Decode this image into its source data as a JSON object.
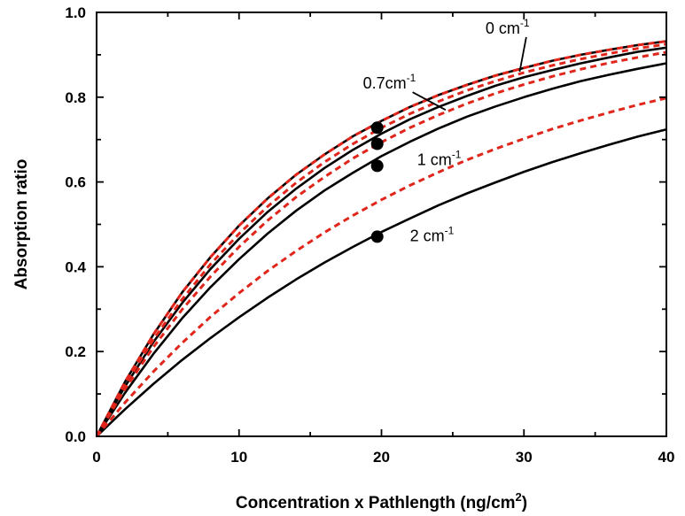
{
  "chart_data": {
    "type": "line",
    "xlabel": "Concentration x Pathlength (ng/cm",
    "xlabel_sup": "2",
    "xlabel_end": ")",
    "ylabel": "Absorption ratio",
    "xlim": [
      0,
      40
    ],
    "ylim": [
      0,
      1.0
    ],
    "xticks": [
      0,
      10,
      20,
      30,
      40
    ],
    "xtick_labels": [
      "0",
      "10",
      "20",
      "30",
      "40"
    ],
    "yticks": [
      0,
      0.2,
      0.4,
      0.6,
      0.8,
      1.0
    ],
    "ytick_labels": [
      "0.0",
      "0.2",
      "0.4",
      "0.6",
      "0.8",
      "1.0"
    ],
    "grid": false,
    "legend": "none",
    "colors": {
      "solid": "#000000",
      "dashed": "#e0251b"
    },
    "x": [
      0,
      2,
      4,
      6,
      8,
      10,
      12,
      14,
      16,
      18,
      20,
      22,
      24,
      26,
      28,
      30,
      32,
      34,
      36,
      38,
      40
    ],
    "series": [
      {
        "style": "solid",
        "label": "0 cm",
        "label_sup": "-1",
        "values": [
          0,
          0.129,
          0.241,
          0.339,
          0.423,
          0.497,
          0.561,
          0.617,
          0.665,
          0.708,
          0.744,
          0.777,
          0.805,
          0.829,
          0.851,
          0.869,
          0.886,
          0.9,
          0.912,
          0.923,
          0.932
        ]
      },
      {
        "style": "solid",
        "label": "0.7cm",
        "label_sup": "-1",
        "values": [
          0,
          0.118,
          0.223,
          0.314,
          0.395,
          0.466,
          0.529,
          0.584,
          0.633,
          0.676,
          0.714,
          0.748,
          0.777,
          0.803,
          0.827,
          0.847,
          0.864,
          0.88,
          0.894,
          0.907,
          0.917
        ]
      },
      {
        "style": "solid",
        "label": "1 cm",
        "label_sup": "-1",
        "values": [
          0,
          0.103,
          0.195,
          0.278,
          0.352,
          0.418,
          0.478,
          0.532,
          0.58,
          0.622,
          0.661,
          0.695,
          0.726,
          0.754,
          0.778,
          0.8,
          0.82,
          0.838,
          0.853,
          0.867,
          0.88
        ]
      },
      {
        "style": "solid",
        "label": "2 cm",
        "label_sup": "-1",
        "values": [
          0,
          0.064,
          0.124,
          0.18,
          0.232,
          0.281,
          0.327,
          0.37,
          0.41,
          0.447,
          0.482,
          0.514,
          0.545,
          0.573,
          0.599,
          0.624,
          0.647,
          0.668,
          0.688,
          0.707,
          0.724
        ]
      },
      {
        "style": "dashed",
        "values": [
          0,
          0.129,
          0.241,
          0.339,
          0.423,
          0.497,
          0.561,
          0.617,
          0.665,
          0.708,
          0.744,
          0.777,
          0.805,
          0.829,
          0.851,
          0.869,
          0.886,
          0.9,
          0.912,
          0.923,
          0.932
        ]
      },
      {
        "style": "dashed",
        "values": [
          0,
          0.122,
          0.229,
          0.323,
          0.406,
          0.478,
          0.542,
          0.598,
          0.647,
          0.69,
          0.728,
          0.761,
          0.79,
          0.816,
          0.838,
          0.858,
          0.875,
          0.89,
          0.903,
          0.915,
          0.925
        ]
      },
      {
        "style": "dashed",
        "values": [
          0,
          0.112,
          0.211,
          0.299,
          0.377,
          0.447,
          0.509,
          0.564,
          0.612,
          0.656,
          0.694,
          0.728,
          0.758,
          0.785,
          0.809,
          0.83,
          0.849,
          0.866,
          0.881,
          0.894,
          0.906
        ]
      },
      {
        "style": "dashed",
        "values": [
          0,
          0.08,
          0.153,
          0.22,
          0.282,
          0.338,
          0.39,
          0.437,
          0.481,
          0.521,
          0.558,
          0.592,
          0.623,
          0.652,
          0.678,
          0.702,
          0.725,
          0.745,
          0.764,
          0.782,
          0.798
        ]
      }
    ],
    "markers": [
      {
        "x": 19.7,
        "y": 0.728
      },
      {
        "x": 19.7,
        "y": 0.69
      },
      {
        "x": 19.7,
        "y": 0.638
      },
      {
        "x": 19.7,
        "y": 0.471
      }
    ],
    "annotations": [
      {
        "text": "0 cm",
        "sup": "-1",
        "at": [
          27.3,
          0.95
        ],
        "pointer_to": [
          29.7,
          0.86
        ]
      },
      {
        "text": "0.7cm",
        "sup": "-1",
        "at": [
          18.7,
          0.82
        ],
        "pointer_to": [
          24.5,
          0.77
        ]
      },
      {
        "text": "1 cm",
        "sup": "-1",
        "at": [
          22.5,
          0.64
        ]
      },
      {
        "text": "2 cm",
        "sup": "-1",
        "at": [
          22.0,
          0.46
        ]
      }
    ]
  }
}
